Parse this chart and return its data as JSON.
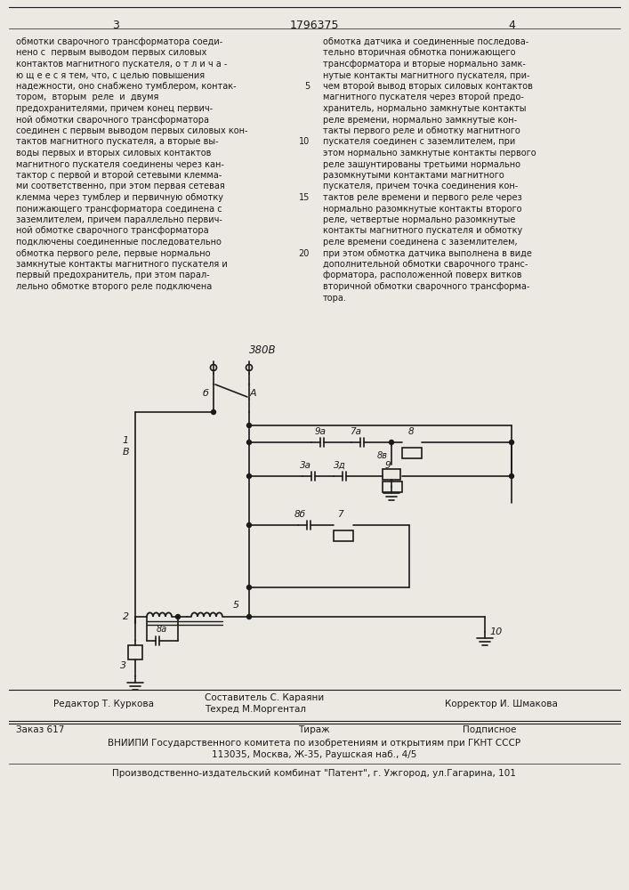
{
  "page_number_left": "3",
  "patent_number": "1796375",
  "page_number_right": "4",
  "bg_color": "#ece9e2",
  "text_color": "#1a1a1a",
  "left_lines": [
    "обмотки сварочного трансформатора соеди-",
    "нено с  первым выводом первых силовых",
    "контактов магнитного пускателя, о т л и ч а -",
    "ю щ е е с я тем, что, с целью повышения",
    "надежности, оно снабжено тумблером, контак-",
    "тором,  вторым  реле  и  двумя",
    "предохранителями, причем конец первич-",
    "ной обмотки сварочного трансформатора",
    "соединен с первым выводом первых силовых кон-",
    "тактов магнитного пускателя, а вторые вы-",
    "воды первых и вторых силовых контактов",
    "магнитного пускателя соединены через кан-",
    "тактор с первой и второй сетевыми клемма-",
    "ми соответственно, при этом первая сетевая",
    "клемма через тумблер и первичную обмотку",
    "понижающего трансформатора соединена с",
    "заземлителем, причем параллельно первич-",
    "ной обмотке сварочного трансформатора",
    "подключены соединенные последовательно",
    "обмотка первого реле, первые нормально",
    "замкнутые контакты магнитного пускателя и",
    "первый предохранитель, при этом парал-",
    "лельно обмотке второго реле подключена"
  ],
  "right_lines": [
    "обмотка датчика и соединенные последова-",
    "тельно вторичная обмотка понижающего",
    "трансформатора и вторые нормально замк-",
    "нутые контакты магнитного пускателя, при-",
    "чем второй вывод вторых силовых контактов",
    "магнитного пускателя через второй предо-",
    "хранитель, нормально замкнутые контакты",
    "реле времени, нормально замкнутые кон-",
    "такты первого реле и обмотку магнитного",
    "пускателя соединен с заземлителем, при",
    "этом нормально замкнутые контакты первого",
    "реле зашунтированы третьими нормально",
    "разомкнутыми контактами магнитного",
    "пускателя, причем точка соединения кон-",
    "тактов реле времени и первого реле через",
    "нормально разомкнутые контакты второго",
    "реле, четвертые нормально разомкнутые",
    "контакты магнитного пускателя и обмотку",
    "реле времени соединена с заземлителем,",
    "при этом обмотка датчика выполнена в виде",
    "дополнительной обмотки сварочного транс-",
    "форматора, расположенной поверх витков",
    "вторичной обмотки сварочного трансформа-",
    "тора."
  ],
  "line_numbers": {
    "4": "5",
    "9": "10",
    "14": "15",
    "19": "20"
  },
  "footer_left": "Редактор Т. Куркова",
  "footer_center_line1": "Составитель С. Караяни",
  "footer_center_line2": "Техред М.Моргентал",
  "footer_right": "Корректор И. Шмакова",
  "footer_order": "Заказ 617",
  "footer_tirazh": "Тираж",
  "footer_podpisnoe": "Подписное",
  "footer_vniip": "ВНИИПИ Государственного комитета по изобретениям и открытиям при ГКНТ СССР",
  "footer_address": "113035, Москва, Ж-35, Раушская наб., 4/5",
  "footer_bottom": "Производственно-издательский комбинат \"Патент\", г. Ужгород, ул.Гагарина, 101"
}
